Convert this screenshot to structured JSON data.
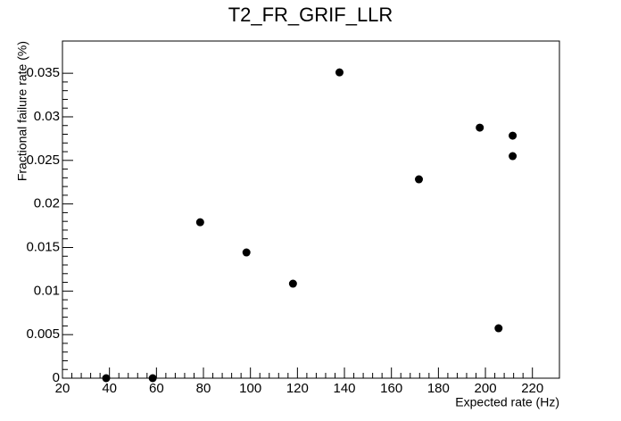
{
  "chart_data": {
    "type": "scatter",
    "title": "T2_FR_GRIF_LLR",
    "x_label": "Expected rate (Hz)",
    "y_label": "Fractional failure rate (%)",
    "x": [
      38.6,
      58.4,
      78.6,
      98.3,
      118.1,
      137.9,
      171.7,
      197.6,
      205.6,
      211.6,
      211.6
    ],
    "values": [
      0,
      0,
      0.0179,
      0.01443,
      0.01085,
      0.0351,
      0.02283,
      0.02876,
      0.00573,
      0.02784,
      0.02549
    ],
    "color": "#000000",
    "xlim": [
      20,
      231.5
    ],
    "xticks": [
      20,
      40,
      60,
      80,
      100,
      120,
      140,
      160,
      180,
      200,
      220
    ],
    "ylim": [
      0,
      0.0387
    ],
    "yticks": [
      0,
      0.005,
      0.01,
      0.015,
      0.02,
      0.025,
      0.03,
      0.035
    ],
    "grid": false
  }
}
